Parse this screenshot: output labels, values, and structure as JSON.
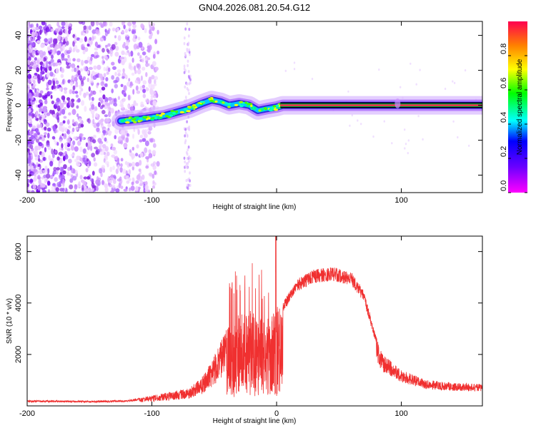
{
  "chart_data": [
    {
      "type": "heatmap",
      "title": "GN04.2026.081.20.54.G12",
      "xlabel": "Height of straight line (km)",
      "ylabel": "Frequency (Hz)",
      "xlim": [
        -200,
        165
      ],
      "ylim": [
        -50,
        48
      ],
      "x_ticks": [
        -200,
        -100,
        0,
        100
      ],
      "x_tick_labels": [
        "-200",
        "-100",
        "",
        "100"
      ],
      "y_ticks": [
        -40,
        -20,
        0,
        20,
        40
      ],
      "ridge": [
        {
          "x": -125,
          "y": -9
        },
        {
          "x": -110,
          "y": -8
        },
        {
          "x": -100,
          "y": -7
        },
        {
          "x": -90,
          "y": -6
        },
        {
          "x": -80,
          "y": -4
        },
        {
          "x": -70,
          "y": -2
        },
        {
          "x": -60,
          "y": 1
        },
        {
          "x": -52,
          "y": 3
        },
        {
          "x": -45,
          "y": 2
        },
        {
          "x": -38,
          "y": 0
        },
        {
          "x": -30,
          "y": 1
        },
        {
          "x": -22,
          "y": 0
        },
        {
          "x": -15,
          "y": -3
        },
        {
          "x": -8,
          "y": -2
        },
        {
          "x": 0,
          "y": -1
        },
        {
          "x": 5,
          "y": 0
        },
        {
          "x": 165,
          "y": 0
        }
      ],
      "colorbar": {
        "label": "Normalized spectral amplitude",
        "ticks": [
          0.0,
          0.2,
          0.4,
          0.6,
          0.8
        ],
        "tick_labels": [
          "0.0",
          "0.2",
          "0.4",
          "0.6",
          "0.8"
        ],
        "range": [
          0,
          1
        ]
      },
      "grid": false
    },
    {
      "type": "line",
      "xlabel": "Height of straight line (km)",
      "ylabel": "SNR (10 * v/v)",
      "xlim": [
        -200,
        165
      ],
      "ylim": [
        0,
        6600
      ],
      "x_ticks": [
        -200,
        -100,
        0,
        100
      ],
      "x_tick_labels": [
        "-200",
        "-100",
        "0",
        "100"
      ],
      "y_ticks": [
        2000,
        4000,
        6000
      ],
      "series_color": "#f03030",
      "envelope": [
        {
          "x": -200,
          "y": 220
        },
        {
          "x": -150,
          "y": 200
        },
        {
          "x": -120,
          "y": 230
        },
        {
          "x": -100,
          "y": 400
        },
        {
          "x": -85,
          "y": 550
        },
        {
          "x": -70,
          "y": 700
        },
        {
          "x": -60,
          "y": 1100
        },
        {
          "x": -50,
          "y": 2000
        },
        {
          "x": -40,
          "y": 3000
        },
        {
          "x": -30,
          "y": 3600
        },
        {
          "x": -20,
          "y": 3700
        },
        {
          "x": -10,
          "y": 3400
        },
        {
          "x": -1,
          "y": 3800
        },
        {
          "x": 5,
          "y": 4000
        },
        {
          "x": 15,
          "y": 4900
        },
        {
          "x": 30,
          "y": 5300
        },
        {
          "x": 45,
          "y": 5400
        },
        {
          "x": 60,
          "y": 5200
        },
        {
          "x": 70,
          "y": 4500
        },
        {
          "x": 78,
          "y": 3000
        },
        {
          "x": 85,
          "y": 2000
        },
        {
          "x": 100,
          "y": 1400
        },
        {
          "x": 120,
          "y": 1000
        },
        {
          "x": 140,
          "y": 900
        },
        {
          "x": 165,
          "y": 850
        }
      ],
      "grid": false
    }
  ]
}
